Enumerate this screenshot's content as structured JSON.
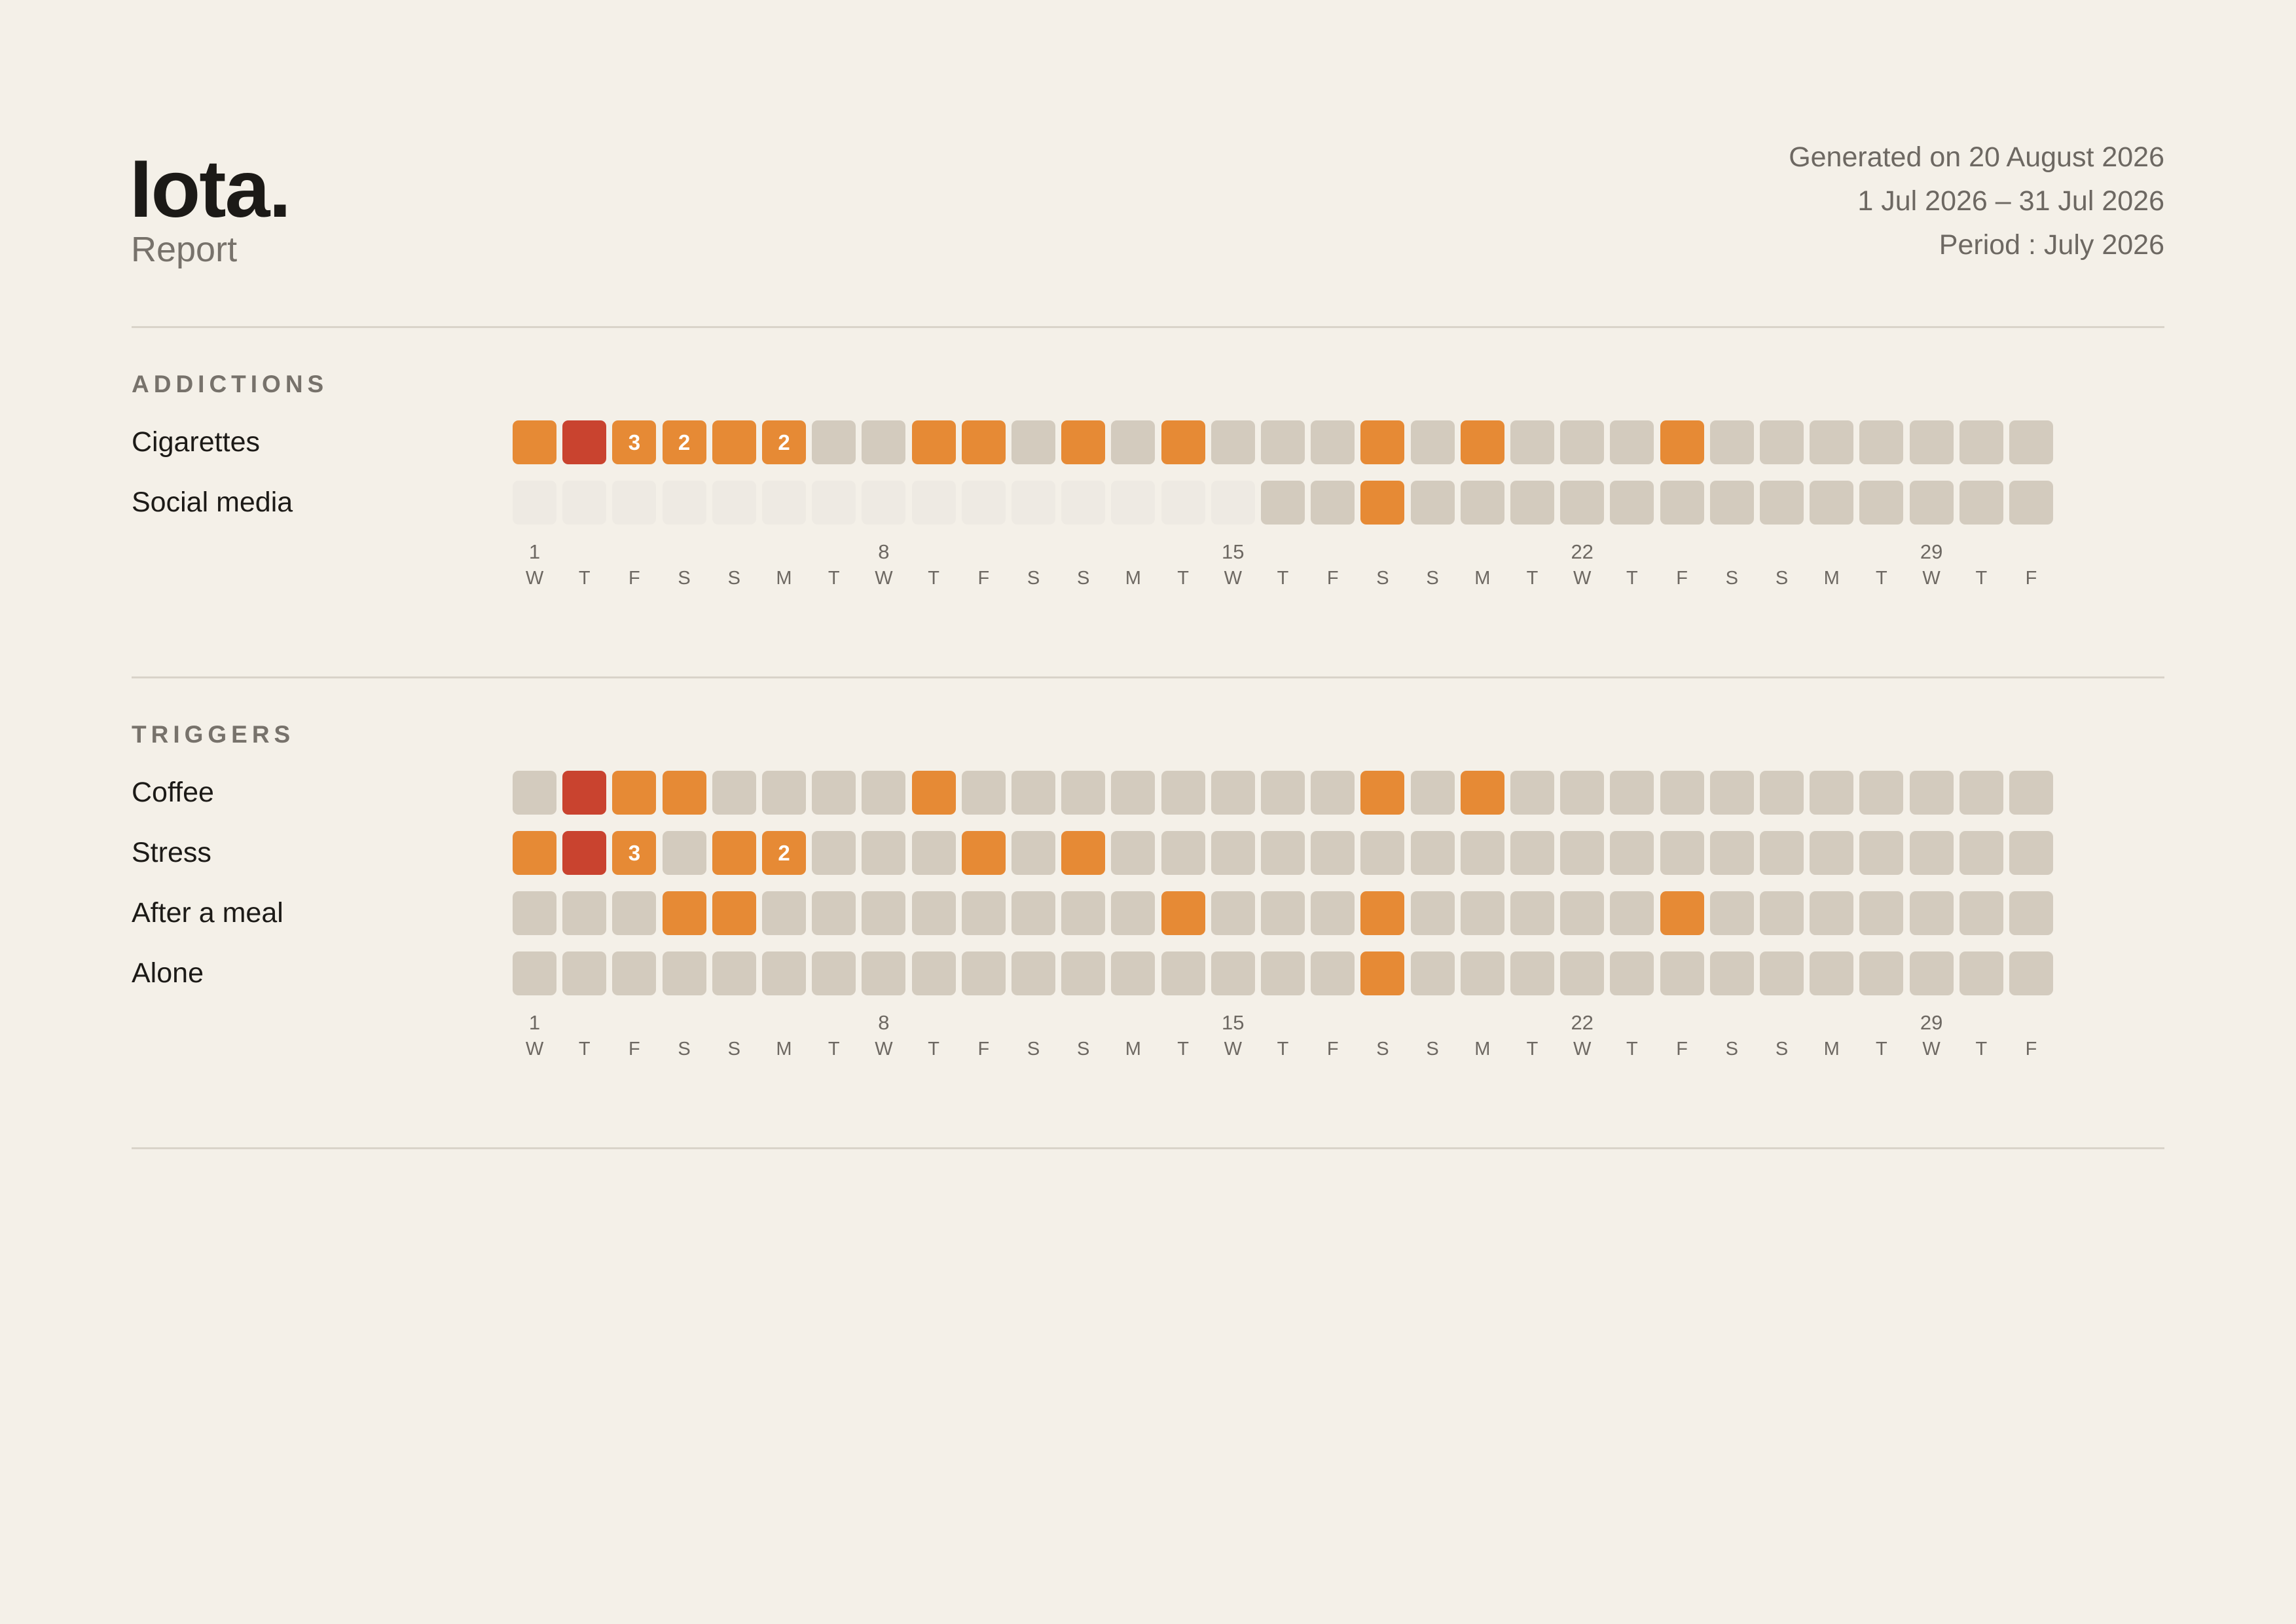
{
  "header": {
    "title": "Iota.",
    "subtitle": "Report",
    "generated": "Generated on 20 August 2026",
    "range": "1 Jul 2026 – 31 Jul 2026",
    "period": "Period : July 2026"
  },
  "days": [
    1,
    null,
    null,
    null,
    null,
    null,
    null,
    8,
    null,
    null,
    null,
    null,
    null,
    null,
    15,
    null,
    null,
    null,
    null,
    null,
    null,
    22,
    null,
    null,
    null,
    null,
    null,
    null,
    29,
    null,
    null
  ],
  "weekdays": [
    "W",
    "T",
    "F",
    "S",
    "S",
    "M",
    "T",
    "W",
    "T",
    "F",
    "S",
    "S",
    "M",
    "T",
    "W",
    "T",
    "F",
    "S",
    "S",
    "M",
    "T",
    "W",
    "T",
    "F",
    "S",
    "S",
    "M",
    "T",
    "W",
    "T",
    "F"
  ],
  "sections": [
    {
      "title": "ADDICTIONS",
      "rows": [
        {
          "label": "Cigarettes",
          "cells": [
            "#e68a35",
            "#c9432f",
            "#e68a35",
            "#e68a35",
            "#e68a35",
            "#e68a35",
            "#d3cbbe",
            "#d3cbbe",
            "#e68a35",
            "#e68a35",
            "#d3cbbe",
            "#e68a35",
            "#d3cbbe",
            "#e68a35",
            "#d3cbbe",
            "#d3cbbe",
            "#d3cbbe",
            "#e68a35",
            "#d3cbbe",
            "#e68a35",
            "#d3cbbe",
            "#d3cbbe",
            "#d3cbbe",
            "#e68a35",
            "#d3cbbe",
            "#d3cbbe",
            "#d3cbbe",
            "#d3cbbe",
            "#d3cbbe",
            "#d3cbbe",
            "#d3cbbe"
          ],
          "counts": [
            null,
            null,
            3,
            2,
            null,
            2,
            null,
            null,
            null,
            null,
            null,
            null,
            null,
            null,
            null,
            null,
            null,
            null,
            null,
            null,
            null,
            null,
            null,
            null,
            null,
            null,
            null,
            null,
            null,
            null,
            null
          ]
        },
        {
          "label": "Social media",
          "cells": [
            "#eeeae3",
            "#eeeae3",
            "#eeeae3",
            "#eeeae3",
            "#eeeae3",
            "#eeeae3",
            "#eeeae3",
            "#eeeae3",
            "#eeeae3",
            "#eeeae3",
            "#eeeae3",
            "#eeeae3",
            "#eeeae3",
            "#eeeae3",
            "#eeeae3",
            "#d3cbbe",
            "#d3cbbe",
            "#e68a35",
            "#d3cbbe",
            "#d3cbbe",
            "#d3cbbe",
            "#d3cbbe",
            "#d3cbbe",
            "#d3cbbe",
            "#d3cbbe",
            "#d3cbbe",
            "#d3cbbe",
            "#d3cbbe",
            "#d3cbbe",
            "#d3cbbe",
            "#d3cbbe"
          ]
        }
      ]
    },
    {
      "title": "TRIGGERS",
      "rows": [
        {
          "label": "Coffee",
          "cells": [
            "#d3cbbe",
            "#c9432f",
            "#e68a35",
            "#e68a35",
            "#d3cbbe",
            "#d3cbbe",
            "#d3cbbe",
            "#d3cbbe",
            "#e68a35",
            "#d3cbbe",
            "#d3cbbe",
            "#d3cbbe",
            "#d3cbbe",
            "#d3cbbe",
            "#d3cbbe",
            "#d3cbbe",
            "#d3cbbe",
            "#e68a35",
            "#d3cbbe",
            "#e68a35",
            "#d3cbbe",
            "#d3cbbe",
            "#d3cbbe",
            "#d3cbbe",
            "#d3cbbe",
            "#d3cbbe",
            "#d3cbbe",
            "#d3cbbe",
            "#d3cbbe",
            "#d3cbbe",
            "#d3cbbe"
          ]
        },
        {
          "label": "Stress",
          "cells": [
            "#e68a35",
            "#c9432f",
            "#e68a35",
            "#d3cbbe",
            "#e68a35",
            "#e68a35",
            "#d3cbbe",
            "#d3cbbe",
            "#d3cbbe",
            "#e68a35",
            "#d3cbbe",
            "#e68a35",
            "#d3cbbe",
            "#d3cbbe",
            "#d3cbbe",
            "#d3cbbe",
            "#d3cbbe",
            "#d3cbbe",
            "#d3cbbe",
            "#d3cbbe",
            "#d3cbbe",
            "#d3cbbe",
            "#d3cbbe",
            "#d3cbbe",
            "#d3cbbe",
            "#d3cbbe",
            "#d3cbbe",
            "#d3cbbe",
            "#d3cbbe",
            "#d3cbbe",
            "#d3cbbe"
          ],
          "counts": [
            null,
            null,
            3,
            null,
            null,
            2,
            null,
            null,
            null,
            null,
            null,
            null,
            null,
            null,
            null,
            null,
            null,
            null,
            null,
            null,
            null,
            null,
            null,
            null,
            null,
            null,
            null,
            null,
            null,
            null,
            null
          ]
        },
        {
          "label": "After a meal",
          "cells": [
            "#d3cbbe",
            "#d3cbbe",
            "#d3cbbe",
            "#e68a35",
            "#e68a35",
            "#d3cbbe",
            "#d3cbbe",
            "#d3cbbe",
            "#d3cbbe",
            "#d3cbbe",
            "#d3cbbe",
            "#d3cbbe",
            "#d3cbbe",
            "#e68a35",
            "#d3cbbe",
            "#d3cbbe",
            "#d3cbbe",
            "#e68a35",
            "#d3cbbe",
            "#d3cbbe",
            "#d3cbbe",
            "#d3cbbe",
            "#d3cbbe",
            "#e68a35",
            "#d3cbbe",
            "#d3cbbe",
            "#d3cbbe",
            "#d3cbbe",
            "#d3cbbe",
            "#d3cbbe",
            "#d3cbbe"
          ]
        },
        {
          "label": "Alone",
          "cells": [
            "#d3cbbe",
            "#d3cbbe",
            "#d3cbbe",
            "#d3cbbe",
            "#d3cbbe",
            "#d3cbbe",
            "#d3cbbe",
            "#d3cbbe",
            "#d3cbbe",
            "#d3cbbe",
            "#d3cbbe",
            "#d3cbbe",
            "#d3cbbe",
            "#d3cbbe",
            "#d3cbbe",
            "#d3cbbe",
            "#d3cbbe",
            "#e68a35",
            "#d3cbbe",
            "#d3cbbe",
            "#d3cbbe",
            "#d3cbbe",
            "#d3cbbe",
            "#d3cbbe",
            "#d3cbbe",
            "#d3cbbe",
            "#d3cbbe",
            "#d3cbbe",
            "#d3cbbe",
            "#d3cbbe",
            "#d3cbbe"
          ]
        }
      ]
    }
  ]
}
